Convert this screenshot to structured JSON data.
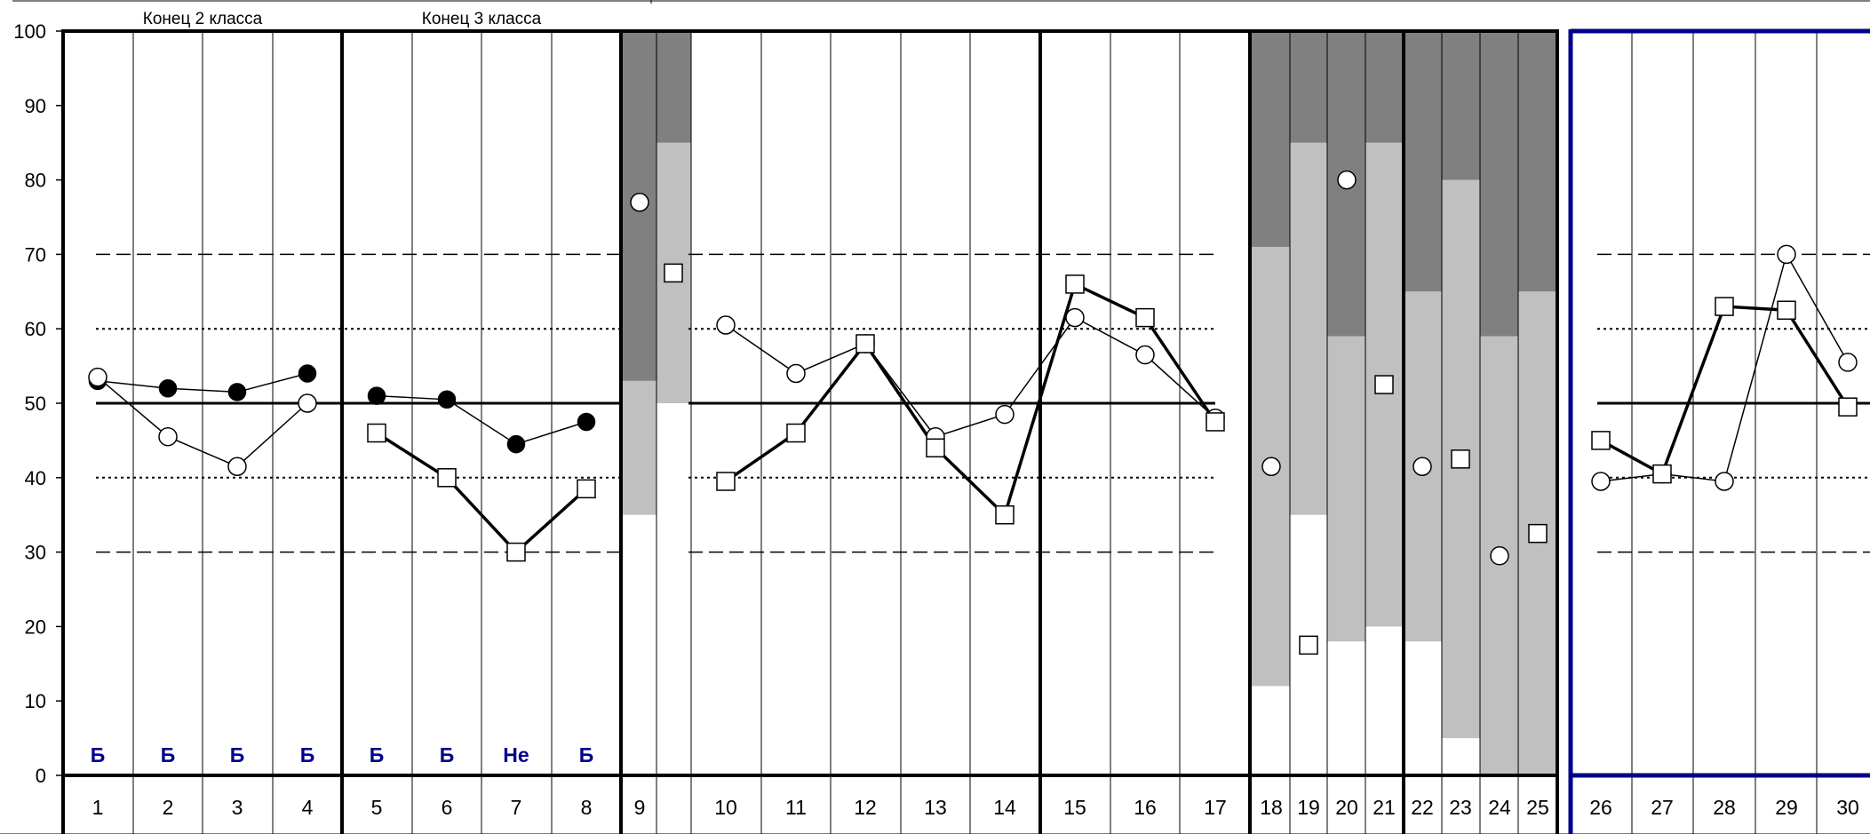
{
  "chart_data": {
    "type": "line",
    "ylim": [
      0,
      100
    ],
    "y_ticks": [
      0,
      10,
      20,
      30,
      40,
      50,
      60,
      70,
      80,
      90,
      100
    ],
    "x": [
      "1",
      "2",
      "3",
      "4",
      "5",
      "6",
      "7",
      "8",
      "9",
      "10",
      "11",
      "12",
      "13",
      "14",
      "15",
      "16",
      "17",
      "18",
      "19",
      "20",
      "21",
      "22",
      "23",
      "24",
      "25",
      "26",
      "27",
      "28",
      "29",
      "30"
    ],
    "section_labels": [
      {
        "text": "Конец 2 класса",
        "at": 2.5
      },
      {
        "text": "Конец 3 класса",
        "at": 6.5
      }
    ],
    "bottom_labels": [
      {
        "x": 1,
        "text": "Б"
      },
      {
        "x": 2,
        "text": "Б"
      },
      {
        "x": 3,
        "text": "Б"
      },
      {
        "x": 4,
        "text": "Б"
      },
      {
        "x": 5,
        "text": "Б"
      },
      {
        "x": 6,
        "text": "Б"
      },
      {
        "x": 7,
        "text": "Не"
      },
      {
        "x": 8,
        "text": "Б"
      }
    ],
    "reference_lines": [
      {
        "y": 70,
        "style": "dashed",
        "ranges": [
          [
            1,
            8
          ],
          [
            10,
            17
          ],
          [
            26,
            30
          ]
        ]
      },
      {
        "y": 30,
        "style": "dashed",
        "ranges": [
          [
            1,
            8
          ],
          [
            10,
            17
          ],
          [
            26,
            30
          ]
        ]
      },
      {
        "y": 60,
        "style": "dotted",
        "ranges": [
          [
            1,
            8
          ],
          [
            10,
            17
          ],
          [
            26,
            30
          ]
        ]
      },
      {
        "y": 40,
        "style": "dotted",
        "ranges": [
          [
            1,
            8
          ],
          [
            10,
            17
          ],
          [
            26,
            30
          ]
        ]
      },
      {
        "y": 50,
        "style": "solid",
        "ranges": [
          [
            1,
            8
          ],
          [
            10,
            17
          ],
          [
            26,
            30
          ]
        ]
      }
    ],
    "stacked_bars": [
      {
        "x": 9,
        "bands": [
          35,
          53,
          100
        ]
      },
      {
        "x": 9.5,
        "bands": [
          50,
          85,
          100
        ]
      },
      {
        "x": 18,
        "bands": [
          12,
          71,
          100
        ]
      },
      {
        "x": 19,
        "bands": [
          35,
          85,
          100
        ]
      },
      {
        "x": 20,
        "bands": [
          18,
          59,
          100
        ]
      },
      {
        "x": 21,
        "bands": [
          20,
          85,
          100
        ]
      },
      {
        "x": 22,
        "bands": [
          18,
          65,
          100
        ]
      },
      {
        "x": 23,
        "bands": [
          5,
          80,
          100
        ]
      },
      {
        "x": 24,
        "bands": [
          0,
          59,
          100
        ]
      },
      {
        "x": 25,
        "bands": [
          0,
          65,
          100
        ]
      }
    ],
    "band_colors": [
      "#ffffff",
      "#c0c0c0",
      "#808080"
    ],
    "series": [
      {
        "marker": "filled-circle",
        "line": "thin",
        "segments": [
          [
            [
              1,
              53
            ],
            [
              2,
              52
            ],
            [
              3,
              51.5
            ],
            [
              4,
              54
            ]
          ],
          [
            [
              5,
              51
            ],
            [
              6,
              50.5
            ],
            [
              7,
              44.5
            ],
            [
              8,
              47.5
            ]
          ]
        ]
      },
      {
        "marker": "open-circle",
        "line": "thin",
        "segments": [
          [
            [
              1,
              53.5
            ],
            [
              2,
              45.5
            ],
            [
              3,
              41.5
            ],
            [
              4,
              50
            ]
          ],
          [
            [
              10,
              60.5
            ],
            [
              11,
              54
            ],
            [
              12,
              58
            ],
            [
              13,
              45.5
            ],
            [
              14,
              48.5
            ],
            [
              15,
              61.5
            ],
            [
              16,
              56.5
            ],
            [
              17,
              48
            ]
          ],
          [
            [
              26,
              39.5
            ],
            [
              27,
              40.5
            ],
            [
              28,
              39.5
            ],
            [
              29,
              70
            ],
            [
              30,
              55.5
            ]
          ]
        ],
        "points": [
          [
            9,
            77
          ],
          [
            18,
            41.5
          ],
          [
            20,
            80
          ],
          [
            22,
            41.5
          ],
          [
            24,
            29.5
          ]
        ]
      },
      {
        "marker": "open-square",
        "line": "thick",
        "segments": [
          [
            [
              5,
              46
            ],
            [
              6,
              40
            ],
            [
              7,
              30
            ],
            [
              8,
              38.5
            ]
          ],
          [
            [
              10,
              39.5
            ],
            [
              11,
              46
            ],
            [
              12,
              58
            ],
            [
              13,
              44
            ],
            [
              14,
              35
            ],
            [
              15,
              66
            ],
            [
              16,
              61.5
            ],
            [
              17,
              47.5
            ]
          ],
          [
            [
              26,
              45
            ],
            [
              27,
              40.5
            ],
            [
              28,
              63
            ],
            [
              29,
              62.5
            ],
            [
              30,
              49.5
            ]
          ]
        ],
        "points": [
          [
            9.5,
            67.5
          ],
          [
            19,
            17.5
          ],
          [
            21,
            52.5
          ],
          [
            23,
            42.5
          ],
          [
            25,
            32.5
          ]
        ]
      }
    ],
    "colors": {
      "frame": "#000000",
      "highlight_frame": "#00008b",
      "bottom_label": "#00008b",
      "marker_fill": "#ffffff"
    }
  }
}
